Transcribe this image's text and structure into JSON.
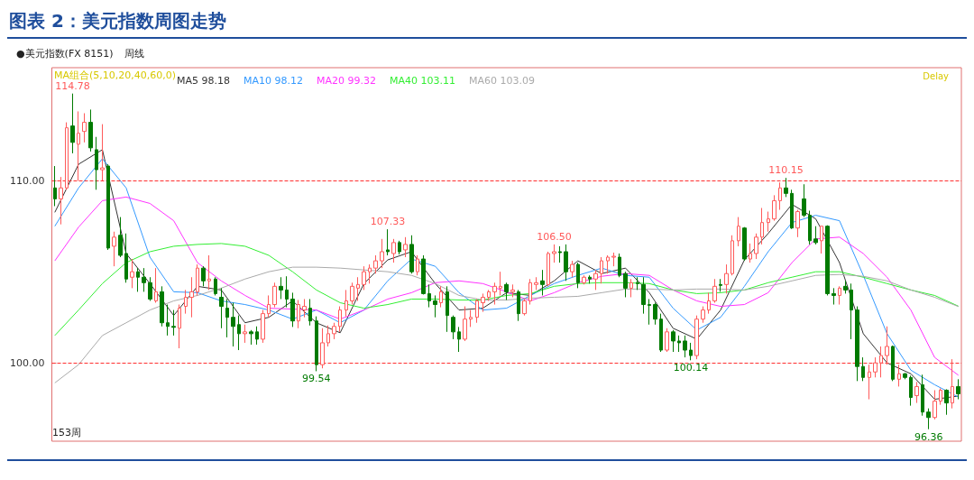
{
  "chart_data": {
    "type": "candlestick",
    "title": "图表 2：美元指数周图走势",
    "categories": [
      null,
      null,
      null,
      null,
      null,
      null,
      null,
      null,
      null,
      null,
      null,
      null,
      null,
      null,
      null,
      null,
      null,
      null,
      null,
      null,
      null,
      null,
      null,
      null,
      null,
      null,
      null,
      null,
      null,
      null,
      null,
      null,
      null,
      null,
      null,
      null,
      null,
      null,
      null,
      null,
      null,
      null,
      null,
      null,
      null,
      null,
      null,
      null,
      null,
      null,
      null,
      null,
      null,
      null,
      null,
      null,
      null,
      null,
      null,
      null,
      null,
      null,
      null,
      null,
      null,
      null,
      null,
      null,
      null,
      null,
      null,
      null,
      null,
      null,
      null,
      null,
      null,
      null,
      null,
      null,
      null,
      null,
      null,
      null,
      null,
      null,
      null,
      null,
      null,
      null,
      null,
      null,
      null,
      null,
      null,
      null,
      null,
      null,
      null,
      null,
      null,
      null,
      null,
      null,
      null,
      null,
      null,
      null,
      null,
      null,
      null,
      null,
      null,
      null,
      null,
      null,
      null,
      null,
      null,
      null,
      null,
      null,
      null,
      null,
      null,
      null,
      null,
      null,
      null,
      null,
      null,
      null,
      null,
      null,
      null,
      null,
      null,
      null,
      null,
      null,
      null,
      null,
      null,
      null,
      null,
      null,
      null,
      null,
      null,
      null,
      null,
      null,
      null
    ],
    "ohlc": [
      [
        109.6,
        110.8,
        108.6,
        109.0
      ],
      [
        109.0,
        110.2,
        107.6,
        109.6
      ],
      [
        109.6,
        113.2,
        109.5,
        112.9
      ],
      [
        113.0,
        114.78,
        111.5,
        112.1
      ],
      [
        112.0,
        113.8,
        110.0,
        112.6
      ],
      [
        112.7,
        113.7,
        112.1,
        113.2
      ],
      [
        113.2,
        113.9,
        111.6,
        111.8
      ],
      [
        111.7,
        112.4,
        109.5,
        110.6
      ],
      [
        110.6,
        113.1,
        110.0,
        110.7
      ],
      [
        110.8,
        110.9,
        106.2,
        106.3
      ],
      [
        106.4,
        107.2,
        105.3,
        106.9
      ],
      [
        107.0,
        108.0,
        105.8,
        105.9
      ],
      [
        106.0,
        107.1,
        104.4,
        104.6
      ],
      [
        104.7,
        105.7,
        104.1,
        105.0
      ],
      [
        105.0,
        105.2,
        103.9,
        104.7
      ],
      [
        104.7,
        105.2,
        103.9,
        104.4
      ],
      [
        104.4,
        104.7,
        103.4,
        103.5
      ],
      [
        103.4,
        105.2,
        103.3,
        103.9
      ],
      [
        103.9,
        104.2,
        102.0,
        102.2
      ],
      [
        102.2,
        103.2,
        101.5,
        102.0
      ],
      [
        102.0,
        102.9,
        101.5,
        101.95
      ],
      [
        101.9,
        103.2,
        100.8,
        103.0
      ],
      [
        103.1,
        104.0,
        102.7,
        103.6
      ],
      [
        103.6,
        104.7,
        102.5,
        103.9
      ],
      [
        103.9,
        105.4,
        103.7,
        105.2
      ],
      [
        105.2,
        105.3,
        104.2,
        104.5
      ],
      [
        104.5,
        105.9,
        104.0,
        104.6
      ],
      [
        104.6,
        104.7,
        103.7,
        103.8
      ],
      [
        103.6,
        104.1,
        101.9,
        103.1
      ],
      [
        103.0,
        103.5,
        101.4,
        102.5
      ],
      [
        102.5,
        103.3,
        100.9,
        102.0
      ],
      [
        102.1,
        102.6,
        100.7,
        101.6
      ],
      [
        101.6,
        102.1,
        101.1,
        101.7
      ],
      [
        101.7,
        101.8,
        101.0,
        101.6
      ],
      [
        101.7,
        102.0,
        101.0,
        101.3
      ],
      [
        101.3,
        102.9,
        101.1,
        102.7
      ],
      [
        102.7,
        103.7,
        102.5,
        103.2
      ],
      [
        103.2,
        104.4,
        103.05,
        104.2
      ],
      [
        104.2,
        104.7,
        103.5,
        104.0
      ],
      [
        104.0,
        104.75,
        103.05,
        103.5
      ],
      [
        103.5,
        103.85,
        101.97,
        102.3
      ],
      [
        102.3,
        103.45,
        101.9,
        103.2
      ],
      [
        102.9,
        103.5,
        102.5,
        103.1
      ],
      [
        103.0,
        103.5,
        102.05,
        102.3
      ],
      [
        102.3,
        102.55,
        99.54,
        99.9
      ],
      [
        99.9,
        101.9,
        99.7,
        101.1
      ],
      [
        101.1,
        102.05,
        100.9,
        101.6
      ],
      [
        101.6,
        102.2,
        101.3,
        102.0
      ],
      [
        102.0,
        103.1,
        101.7,
        102.9
      ],
      [
        102.9,
        104.0,
        102.55,
        103.4
      ],
      [
        103.4,
        104.4,
        103.2,
        104.2
      ],
      [
        104.1,
        104.7,
        103.4,
        104.3
      ],
      [
        104.3,
        105.3,
        104.0,
        105.0
      ],
      [
        105.0,
        105.4,
        104.35,
        105.2
      ],
      [
        105.2,
        105.9,
        104.9,
        105.6
      ],
      [
        105.6,
        106.8,
        105.2,
        106.1
      ],
      [
        106.2,
        107.33,
        105.9,
        106.1
      ],
      [
        106.0,
        106.8,
        105.5,
        106.6
      ],
      [
        106.6,
        106.7,
        105.95,
        106.1
      ],
      [
        106.2,
        106.9,
        105.8,
        106.5
      ],
      [
        106.5,
        107.0,
        104.9,
        105.0
      ],
      [
        105.0,
        105.9,
        104.8,
        105.7
      ],
      [
        105.7,
        105.9,
        103.75,
        103.8
      ],
      [
        103.8,
        104.3,
        103.05,
        103.4
      ],
      [
        103.4,
        103.7,
        102.5,
        103.2
      ],
      [
        103.3,
        104.2,
        103.05,
        103.9
      ],
      [
        103.9,
        104.2,
        101.7,
        102.6
      ],
      [
        102.5,
        102.6,
        101.3,
        101.7
      ],
      [
        101.7,
        101.97,
        100.6,
        101.3
      ],
      [
        101.3,
        103.1,
        101.2,
        102.4
      ],
      [
        102.4,
        102.9,
        101.97,
        102.5
      ],
      [
        102.5,
        103.5,
        102.2,
        103.4
      ],
      [
        103.3,
        103.8,
        102.8,
        103.6
      ],
      [
        103.6,
        104.0,
        103.4,
        103.9
      ],
      [
        103.9,
        104.4,
        103.2,
        104.2
      ],
      [
        104.1,
        105.0,
        103.7,
        104.2
      ],
      [
        104.3,
        104.4,
        103.45,
        103.9
      ],
      [
        103.9,
        104.3,
        103.6,
        104.0
      ],
      [
        103.9,
        104.0,
        102.3,
        102.7
      ],
      [
        102.7,
        103.5,
        102.6,
        103.4
      ],
      [
        103.4,
        104.6,
        103.2,
        104.4
      ],
      [
        104.3,
        104.7,
        104.0,
        104.4
      ],
      [
        104.5,
        105.1,
        103.7,
        104.3
      ],
      [
        104.3,
        106.1,
        104.2,
        106.0
      ],
      [
        106.0,
        106.5,
        105.5,
        106.1
      ],
      [
        106.1,
        106.4,
        105.5,
        106.05
      ],
      [
        106.1,
        106.5,
        104.5,
        105.0
      ],
      [
        105.0,
        105.6,
        104.7,
        105.4
      ],
      [
        105.4,
        105.5,
        104.1,
        104.4
      ],
      [
        104.4,
        104.8,
        104.3,
        104.7
      ],
      [
        104.7,
        104.8,
        104.35,
        104.6
      ],
      [
        104.6,
        105.1,
        104.0,
        104.9
      ],
      [
        104.9,
        105.8,
        104.35,
        105.6
      ],
      [
        105.6,
        105.9,
        104.9,
        105.8
      ],
      [
        105.8,
        106.05,
        105.3,
        105.85
      ],
      [
        105.8,
        106.0,
        104.7,
        104.8
      ],
      [
        104.9,
        105.0,
        103.6,
        104.1
      ],
      [
        104.1,
        104.6,
        103.6,
        104.4
      ],
      [
        104.4,
        104.7,
        104.0,
        104.35
      ],
      [
        104.3,
        104.7,
        102.7,
        103.2
      ],
      [
        103.2,
        103.5,
        102.1,
        103.15
      ],
      [
        103.2,
        103.3,
        102.1,
        102.4
      ],
      [
        102.4,
        102.7,
        100.6,
        100.7
      ],
      [
        100.7,
        101.9,
        100.6,
        101.7
      ],
      [
        101.7,
        101.8,
        100.6,
        101.2
      ],
      [
        101.2,
        101.5,
        100.6,
        101.1
      ],
      [
        101.2,
        101.5,
        100.3,
        100.7
      ],
      [
        100.7,
        101.1,
        100.14,
        100.4
      ],
      [
        100.4,
        102.6,
        100.2,
        102.4
      ],
      [
        102.4,
        103.1,
        102.2,
        102.9
      ],
      [
        102.9,
        103.85,
        102.7,
        103.4
      ],
      [
        103.4,
        104.6,
        103.3,
        104.2
      ],
      [
        104.3,
        104.6,
        103.9,
        104.25
      ],
      [
        104.3,
        105.4,
        103.8,
        104.9
      ],
      [
        104.9,
        107.0,
        104.8,
        106.7
      ],
      [
        106.7,
        108.0,
        106.4,
        107.5
      ],
      [
        107.4,
        107.45,
        105.6,
        105.7
      ],
      [
        105.7,
        106.55,
        105.5,
        106.0
      ],
      [
        106.0,
        107.1,
        105.7,
        106.9
      ],
      [
        106.9,
        108.5,
        106.5,
        107.7
      ],
      [
        107.7,
        108.3,
        107.2,
        107.9
      ],
      [
        107.9,
        109.2,
        107.8,
        108.9
      ],
      [
        108.9,
        109.9,
        108.4,
        109.6
      ],
      [
        109.6,
        110.15,
        109.1,
        109.3
      ],
      [
        109.3,
        109.5,
        107.35,
        107.4
      ],
      [
        107.4,
        108.4,
        106.9,
        108.3
      ],
      [
        109.0,
        109.8,
        108.0,
        108.1
      ],
      [
        108.1,
        108.35,
        106.5,
        106.7
      ],
      [
        106.8,
        107.5,
        106.5,
        106.6
      ],
      [
        106.7,
        107.5,
        106.0,
        107.5
      ],
      [
        107.5,
        107.55,
        103.7,
        103.8
      ],
      [
        103.8,
        104.1,
        103.2,
        103.7
      ],
      [
        103.7,
        104.2,
        103.2,
        104.1
      ],
      [
        104.2,
        104.5,
        103.8,
        104.0
      ],
      [
        104.0,
        104.35,
        101.3,
        102.9
      ],
      [
        102.9,
        103.1,
        99.0,
        99.8
      ],
      [
        99.8,
        100.3,
        99.0,
        99.2
      ],
      [
        99.2,
        99.9,
        98.0,
        99.5
      ],
      [
        99.5,
        100.3,
        99.2,
        100.0
      ],
      [
        100.0,
        100.9,
        99.2,
        100.4
      ],
      [
        100.4,
        102.0,
        99.9,
        100.9
      ],
      [
        100.9,
        100.95,
        99.0,
        99.1
      ],
      [
        99.1,
        99.9,
        98.7,
        99.4
      ],
      [
        99.4,
        99.45,
        99.1,
        99.2
      ],
      [
        99.2,
        99.3,
        97.65,
        98.1
      ],
      [
        98.2,
        98.95,
        97.8,
        98.7
      ],
      [
        98.8,
        99.35,
        97.1,
        97.3
      ],
      [
        97.3,
        97.5,
        96.36,
        97.0
      ],
      [
        97.0,
        98.5,
        96.9,
        97.9
      ],
      [
        97.9,
        98.6,
        97.7,
        98.5
      ],
      [
        98.5,
        98.55,
        97.15,
        97.8
      ],
      [
        97.8,
        100.2,
        97.5,
        98.7
      ],
      [
        98.7,
        99.1,
        98.0,
        98.3
      ]
    ],
    "colors": [
      "#007a00",
      "#ff5a5a",
      "#ff5a5a",
      "#007a00",
      "#ff5a5a",
      "#ff5a5a",
      "#007a00",
      "#007a00",
      "#ff5a5a",
      "#007a00",
      "#ff5a5a",
      "#007a00",
      "#007a00",
      "#ff5a5a",
      "#007a00",
      "#007a00",
      "#007a00",
      "#ff5a5a",
      "#007a00",
      "#007a00",
      "#007a00",
      "#ff5a5a",
      "#ff5a5a",
      "#ff5a5a",
      "#ff5a5a",
      "#007a00",
      "#ff5a5a",
      "#007a00",
      "#007a00",
      "#007a00",
      "#007a00",
      "#007a00",
      "#ff5a5a",
      "#007a00",
      "#007a00",
      "#ff5a5a",
      "#ff5a5a",
      "#ff5a5a",
      "#007a00",
      "#007a00",
      "#007a00",
      "#ff5a5a",
      "#ff5a5a",
      "#007a00",
      "#007a00",
      "#ff5a5a",
      "#ff5a5a",
      "#ff5a5a",
      "#ff5a5a",
      "#ff5a5a",
      "#ff5a5a",
      "#ff5a5a",
      "#ff5a5a",
      "#ff5a5a",
      "#ff5a5a",
      "#ff5a5a",
      "#007a00",
      "#ff5a5a",
      "#007a00",
      "#ff5a5a",
      "#007a00",
      "#ff5a5a",
      "#007a00",
      "#007a00",
      "#007a00",
      "#ff5a5a",
      "#007a00",
      "#007a00",
      "#007a00",
      "#ff5a5a",
      "#ff5a5a",
      "#ff5a5a",
      "#ff5a5a",
      "#ff5a5a",
      "#ff5a5a",
      "#ff5a5a",
      "#007a00",
      "#ff5a5a",
      "#007a00",
      "#ff5a5a",
      "#ff5a5a",
      "#ff5a5a",
      "#007a00",
      "#ff5a5a",
      "#ff5a5a",
      "#007a00",
      "#007a00",
      "#ff5a5a",
      "#007a00",
      "#ff5a5a",
      "#007a00",
      "#ff5a5a",
      "#ff5a5a",
      "#ff5a5a",
      "#ff5a5a",
      "#007a00",
      "#007a00",
      "#ff5a5a",
      "#007a00",
      "#007a00",
      "#007a00",
      "#007a00",
      "#007a00",
      "#ff5a5a",
      "#007a00",
      "#007a00",
      "#007a00",
      "#007a00",
      "#ff5a5a",
      "#ff5a5a",
      "#ff5a5a",
      "#ff5a5a",
      "#007a00",
      "#ff5a5a",
      "#ff5a5a",
      "#ff5a5a",
      "#007a00",
      "#ff5a5a",
      "#ff5a5a",
      "#ff5a5a",
      "#ff5a5a",
      "#ff5a5a",
      "#ff5a5a",
      "#007a00",
      "#007a00",
      "#ff5a5a",
      "#007a00",
      "#007a00",
      "#007a00",
      "#ff5a5a",
      "#007a00",
      "#007a00",
      "#ff5a5a",
      "#007a00",
      "#007a00",
      "#007a00",
      "#007a00",
      "#ff5a5a",
      "#ff5a5a",
      "#ff5a5a",
      "#ff5a5a",
      "#007a00",
      "#ff5a5a",
      "#007a00",
      "#007a00",
      "#ff5a5a",
      "#007a00",
      "#007a00",
      "#ff5a5a",
      "#ff5a5a",
      "#007a00",
      "#ff5a5a",
      "#007a00"
    ],
    "series": [
      {
        "type": "line",
        "name": "MA5 98.18",
        "color": "#333333",
        "values": [
          108.26,
          null,
          null,
          null,
          110.9,
          null,
          null,
          null,
          111.7,
          null,
          null,
          null,
          106.0,
          null,
          null,
          null,
          104.35,
          null,
          null,
          null,
          102.6,
          null,
          null,
          null,
          104.2,
          null,
          null,
          null,
          104.0,
          null,
          null,
          null,
          102.2,
          null,
          null,
          null,
          102.5,
          null,
          null,
          null,
          103.4,
          null,
          null,
          null,
          102.2,
          null,
          null,
          null,
          101.65,
          null,
          null,
          null,
          104.35,
          null,
          null,
          null,
          105.65,
          null,
          null,
          null,
          106.1,
          null,
          null,
          null,
          104.35,
          null,
          null,
          null,
          102.9,
          null,
          null,
          null,
          103.0,
          null,
          null,
          null,
          103.85,
          null,
          null,
          null,
          103.7,
          null,
          null,
          null,
          104.5,
          null,
          null,
          null,
          105.6,
          null,
          null,
          null,
          104.9,
          null,
          null,
          null,
          105.2,
          null,
          null,
          null,
          103.85,
          null,
          null,
          null,
          101.9,
          null,
          null,
          null,
          101.3,
          null,
          null,
          null,
          102.9,
          null,
          null,
          null,
          105.65,
          null,
          null,
          null,
          107.1,
          null,
          null,
          null,
          108.7,
          null,
          null,
          null,
          107.9,
          null,
          null,
          null,
          105.5,
          null,
          null,
          null,
          101.6,
          null,
          null,
          null,
          100.0,
          null,
          null,
          null,
          99.4,
          null,
          null,
          null,
          98.0,
          null,
          null,
          null,
          98.18
        ]
      },
      {
        "type": "line",
        "name": "MA10 98.12",
        "color": "#3399ff",
        "values": [
          107.5,
          null,
          null,
          null,
          109.6,
          null,
          null,
          null,
          111.2,
          null,
          null,
          null,
          109.6,
          null,
          null,
          null,
          105.8,
          null,
          null,
          null,
          103.9,
          null,
          null,
          null,
          103.85,
          null,
          null,
          null,
          103.4,
          null,
          null,
          null,
          103.2,
          null,
          null,
          null,
          102.9,
          null,
          null,
          null,
          102.4,
          null,
          null,
          null,
          102.9,
          null,
          null,
          null,
          102.2,
          null,
          null,
          null,
          102.9,
          null,
          null,
          null,
          104.5,
          null,
          null,
          null,
          105.7,
          null,
          null,
          null,
          105.3,
          null,
          null,
          null,
          103.85,
          null,
          null,
          null,
          102.9,
          null,
          null,
          null,
          103.0,
          null,
          null,
          null,
          103.7,
          null,
          null,
          null,
          104.35,
          null,
          null,
          null,
          104.8,
          null,
          null,
          null,
          105.2,
          null,
          null,
          null,
          104.8,
          null,
          null,
          null,
          104.7,
          null,
          null,
          null,
          103.0,
          null,
          null,
          null,
          101.8,
          null,
          null,
          null,
          102.5,
          null,
          null,
          null,
          104.2,
          null,
          null,
          null,
          106.1,
          null,
          null,
          null,
          107.7,
          null,
          null,
          null,
          108.1,
          null,
          null,
          null,
          107.8,
          null,
          null,
          null,
          104.8,
          null,
          null,
          null,
          101.6,
          null,
          null,
          null,
          99.6,
          null,
          null,
          null,
          98.8,
          null,
          null,
          null,
          98.12
        ]
      },
      {
        "type": "line",
        "name": "MA20 99.32",
        "color": "#ff33ff",
        "values": [
          105.6,
          null,
          null,
          null,
          107.45,
          null,
          null,
          null,
          108.9,
          null,
          null,
          null,
          109.1,
          null,
          null,
          null,
          108.75,
          null,
          null,
          null,
          107.8,
          null,
          null,
          null,
          105.5,
          null,
          null,
          null,
          104.5,
          null,
          null,
          null,
          103.7,
          null,
          null,
          null,
          103.0,
          null,
          null,
          null,
          102.95,
          null,
          null,
          null,
          102.9,
          null,
          null,
          null,
          102.4,
          null,
          null,
          null,
          102.9,
          null,
          null,
          null,
          103.5,
          null,
          null,
          null,
          103.85,
          null,
          null,
          null,
          104.4,
          null,
          null,
          null,
          104.5,
          null,
          null,
          null,
          104.35,
          null,
          null,
          null,
          103.9,
          null,
          null,
          null,
          103.4,
          null,
          null,
          null,
          103.85,
          null,
          null,
          null,
          104.4,
          null,
          null,
          null,
          104.75,
          null,
          null,
          null,
          104.9,
          null,
          null,
          null,
          104.8,
          null,
          null,
          null,
          104.0,
          null,
          null,
          null,
          103.4,
          null,
          null,
          null,
          103.1,
          null,
          null,
          null,
          103.2,
          null,
          null,
          null,
          103.85,
          null,
          null,
          null,
          105.5,
          null,
          null,
          null,
          106.8,
          null,
          null,
          null,
          106.9,
          null,
          null,
          null,
          106.0,
          null,
          null,
          null,
          104.7,
          null,
          null,
          null,
          102.9,
          null,
          null,
          null,
          100.3,
          null,
          null,
          null,
          99.32
        ]
      },
      {
        "type": "line",
        "name": "MA40 103.11",
        "color": "#33ee33",
        "values": [
          101.5,
          null,
          null,
          null,
          102.9,
          null,
          null,
          null,
          104.35,
          null,
          null,
          null,
          105.5,
          null,
          null,
          null,
          106.1,
          null,
          null,
          null,
          106.4,
          null,
          null,
          null,
          106.5,
          null,
          null,
          null,
          106.55,
          null,
          null,
          null,
          106.4,
          null,
          null,
          null,
          105.9,
          null,
          null,
          null,
          105.0,
          null,
          null,
          null,
          104.0,
          null,
          null,
          null,
          103.3,
          null,
          null,
          null,
          103.0,
          null,
          null,
          null,
          103.2,
          null,
          null,
          null,
          103.5,
          null,
          null,
          null,
          103.5,
          null,
          null,
          null,
          103.45,
          null,
          null,
          null,
          103.45,
          null,
          null,
          null,
          103.7,
          null,
          null,
          null,
          103.8,
          null,
          null,
          null,
          104.2,
          null,
          null,
          null,
          104.35,
          null,
          null,
          null,
          104.4,
          null,
          null,
          null,
          104.4,
          null,
          null,
          null,
          104.35,
          null,
          null,
          null,
          104.0,
          null,
          null,
          null,
          103.8,
          null,
          null,
          null,
          103.85,
          null,
          null,
          null,
          104.0,
          null,
          null,
          null,
          104.4,
          null,
          null,
          null,
          104.7,
          null,
          null,
          null,
          105.0,
          null,
          null,
          null,
          105.0,
          null,
          null,
          null,
          104.7,
          null,
          null,
          null,
          104.35,
          null,
          null,
          null,
          104.0,
          null,
          null,
          null,
          103.7,
          null,
          null,
          null,
          103.11
        ]
      },
      {
        "type": "line",
        "name": "MA60 103.09",
        "color": "#aaaaaa",
        "values": [
          98.9,
          null,
          null,
          null,
          99.9,
          null,
          null,
          null,
          101.5,
          null,
          null,
          null,
          102.2,
          null,
          null,
          null,
          102.9,
          null,
          null,
          null,
          103.4,
          null,
          null,
          null,
          103.7,
          null,
          null,
          null,
          104.1,
          null,
          null,
          null,
          104.6,
          null,
          null,
          null,
          105.0,
          null,
          null,
          null,
          105.25,
          null,
          null,
          null,
          105.25,
          null,
          null,
          null,
          105.2,
          null,
          null,
          null,
          105.1,
          null,
          null,
          null,
          105.0,
          null,
          null,
          null,
          104.8,
          null,
          null,
          null,
          104.35,
          null,
          null,
          null,
          103.7,
          null,
          null,
          null,
          103.45,
          null,
          null,
          null,
          103.45,
          null,
          null,
          null,
          103.55,
          null,
          null,
          null,
          103.6,
          null,
          null,
          null,
          103.65,
          null,
          null,
          null,
          103.85,
          null,
          null,
          null,
          104.05,
          null,
          null,
          null,
          104.05,
          null,
          null,
          null,
          104.0,
          null,
          null,
          null,
          104.05,
          null,
          null,
          null,
          104.05,
          null,
          null,
          null,
          104.0,
          null,
          null,
          null,
          104.2,
          null,
          null,
          null,
          104.5,
          null,
          null,
          null,
          104.8,
          null,
          null,
          null,
          104.85,
          null,
          null,
          null,
          104.75,
          null,
          null,
          null,
          104.5,
          null,
          null,
          null,
          104.0,
          null,
          null,
          null,
          103.6,
          null,
          null,
          null,
          103.09
        ]
      }
    ],
    "ylim": [
      95.7,
      116.2
    ],
    "yticks": [
      {
        "value": 100,
        "label": "100.00"
      },
      {
        "value": 110,
        "label": "110.00"
      }
    ],
    "tick_labels": "y",
    "grid": "y",
    "legend": "top left",
    "annotations": [
      "●美元指数(FX 8151)",
      "周线",
      "MA组合(5,10,20,40,60,0)",
      "Delay",
      "153周",
      {
        "text": "114.78",
        "y": 114.78
      },
      {
        "text": "107.33",
        "y": 107.33
      },
      {
        "text": "106.50",
        "y": 106.5
      },
      {
        "text": "110.15",
        "y": 110.15
      },
      {
        "text": "99.54",
        "y": 99.54
      },
      {
        "text": "100.14",
        "y": 100.14
      },
      {
        "text": "96.36",
        "y": 96.36
      }
    ]
  }
}
